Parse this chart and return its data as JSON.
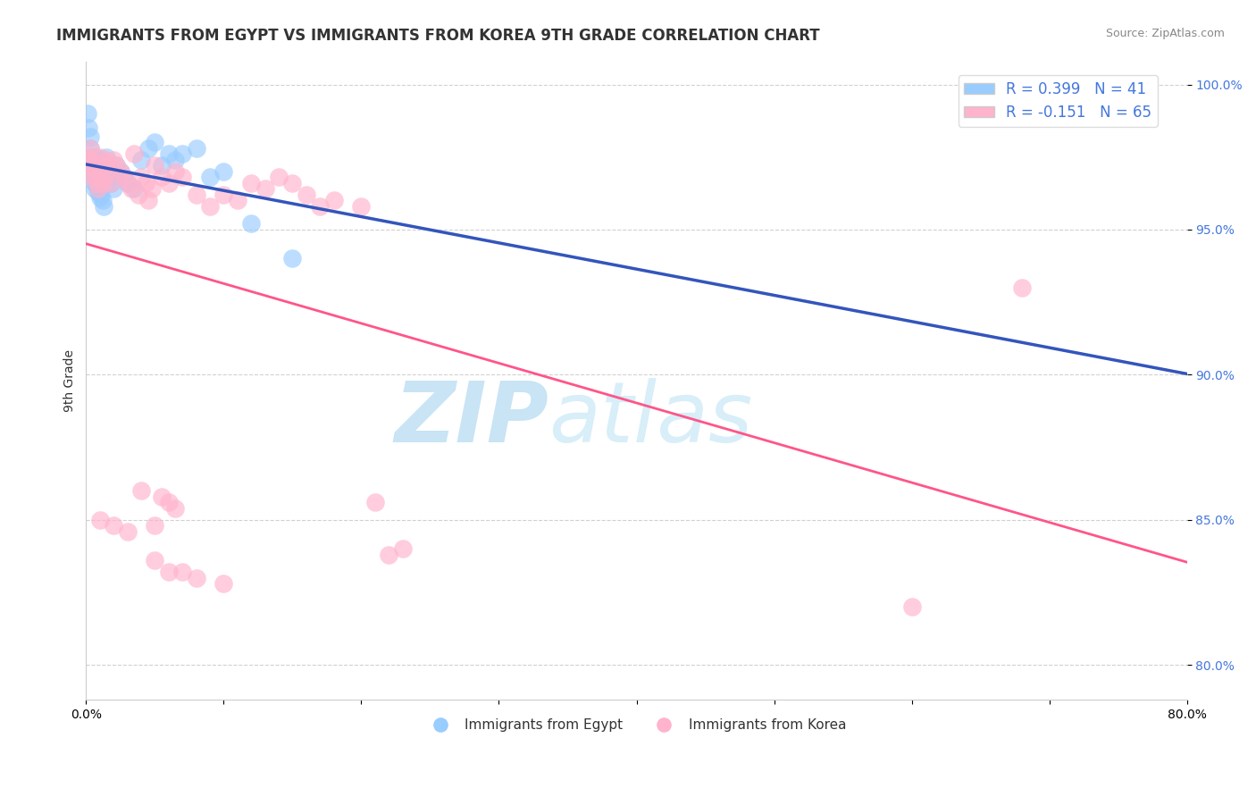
{
  "title": "IMMIGRANTS FROM EGYPT VS IMMIGRANTS FROM KOREA 9TH GRADE CORRELATION CHART",
  "source_text": "Source: ZipAtlas.com",
  "ylabel": "9th Grade",
  "xlim": [
    0.0,
    0.8
  ],
  "ylim": [
    0.788,
    1.008
  ],
  "yticks": [
    0.8,
    0.85,
    0.9,
    0.95,
    1.0
  ],
  "ytick_labels": [
    "80.0%",
    "85.0%",
    "90.0%",
    "95.0%",
    "100.0%"
  ],
  "color_egypt": "#99CCFF",
  "color_korea": "#FFB3CC",
  "line_color_egypt": "#3355BB",
  "line_color_korea": "#FF5588",
  "egypt_x": [
    0.001,
    0.002,
    0.003,
    0.003,
    0.004,
    0.004,
    0.005,
    0.005,
    0.006,
    0.006,
    0.007,
    0.007,
    0.008,
    0.008,
    0.009,
    0.01,
    0.01,
    0.011,
    0.012,
    0.013,
    0.015,
    0.016,
    0.018,
    0.02,
    0.022,
    0.025,
    0.028,
    0.03,
    0.035,
    0.04,
    0.045,
    0.05,
    0.055,
    0.06,
    0.065,
    0.07,
    0.08,
    0.09,
    0.1,
    0.12,
    0.15
  ],
  "egypt_y": [
    0.99,
    0.985,
    0.982,
    0.978,
    0.975,
    0.972,
    0.97,
    0.968,
    0.966,
    0.964,
    0.975,
    0.97,
    0.968,
    0.965,
    0.963,
    0.961,
    0.974,
    0.962,
    0.96,
    0.958,
    0.975,
    0.968,
    0.966,
    0.964,
    0.972,
    0.97,
    0.968,
    0.966,
    0.964,
    0.974,
    0.978,
    0.98,
    0.972,
    0.976,
    0.974,
    0.976,
    0.978,
    0.968,
    0.97,
    0.952,
    0.94
  ],
  "korea_x": [
    0.001,
    0.002,
    0.003,
    0.004,
    0.004,
    0.005,
    0.006,
    0.007,
    0.008,
    0.009,
    0.01,
    0.011,
    0.012,
    0.013,
    0.014,
    0.015,
    0.016,
    0.018,
    0.02,
    0.022,
    0.025,
    0.027,
    0.03,
    0.033,
    0.035,
    0.038,
    0.04,
    0.043,
    0.045,
    0.048,
    0.05,
    0.055,
    0.06,
    0.065,
    0.07,
    0.08,
    0.09,
    0.1,
    0.11,
    0.12,
    0.13,
    0.14,
    0.15,
    0.16,
    0.17,
    0.18,
    0.2,
    0.21,
    0.22,
    0.23,
    0.05,
    0.06,
    0.08,
    0.1,
    0.05,
    0.07,
    0.04,
    0.06,
    0.055,
    0.065,
    0.01,
    0.02,
    0.03,
    0.6,
    0.68
  ],
  "korea_y": [
    0.975,
    0.972,
    0.978,
    0.975,
    0.968,
    0.972,
    0.968,
    0.97,
    0.966,
    0.964,
    0.975,
    0.968,
    0.966,
    0.972,
    0.968,
    0.974,
    0.972,
    0.966,
    0.974,
    0.972,
    0.97,
    0.968,
    0.966,
    0.964,
    0.976,
    0.962,
    0.968,
    0.966,
    0.96,
    0.964,
    0.972,
    0.968,
    0.966,
    0.97,
    0.968,
    0.962,
    0.958,
    0.962,
    0.96,
    0.966,
    0.964,
    0.968,
    0.966,
    0.962,
    0.958,
    0.96,
    0.958,
    0.856,
    0.838,
    0.84,
    0.848,
    0.832,
    0.83,
    0.828,
    0.836,
    0.832,
    0.86,
    0.856,
    0.858,
    0.854,
    0.85,
    0.848,
    0.846,
    0.82,
    0.93
  ],
  "watermark_zip": "ZIP",
  "watermark_atlas": "atlas",
  "watermark_color": "#C8E4F5",
  "title_fontsize": 12,
  "axis_label_fontsize": 10,
  "tick_fontsize": 10,
  "legend_fontsize": 12,
  "source_fontsize": 9
}
